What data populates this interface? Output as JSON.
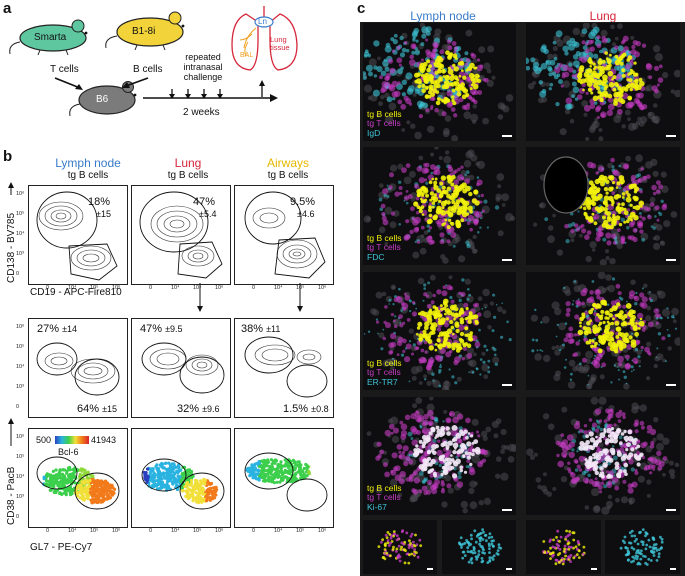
{
  "panels": {
    "a": "a",
    "b": "b",
    "c": "c"
  },
  "panel_a": {
    "mouse_smarta": "Smarta",
    "mouse_b18i": "B1-8i",
    "mouse_b6": "B6",
    "label_tcells": "T cells",
    "label_bcells": "B cells",
    "challenge": "repeated\nintranasal\nchallenge",
    "duration": "2 weeks",
    "lung_ln": "Ln",
    "lung_bal": "BAL",
    "lung_tissue": "Lung\ntissue"
  },
  "panel_b": {
    "columns": [
      {
        "title": "Lymph node",
        "sub": "tg B cells"
      },
      {
        "title": "Lung",
        "sub": "tg B cells"
      },
      {
        "title": "Airways",
        "sub": "tg B cells"
      }
    ],
    "row1": {
      "ylabel": "CD138 - BV785",
      "xlabel": "CD19 - APC-Fire810",
      "pcts": [
        {
          "val": "18%",
          "sd": "±15"
        },
        {
          "val": "47%",
          "sd": "±5.4"
        },
        {
          "val": "9.5%",
          "sd": "±4.6"
        }
      ]
    },
    "row2": {
      "upper": [
        {
          "val": "27%",
          "sd": "±14"
        },
        {
          "val": "47%",
          "sd": "±9.5"
        },
        {
          "val": "38%",
          "sd": "±11"
        }
      ],
      "lower": [
        {
          "val": "64%",
          "sd": "±15"
        },
        {
          "val": "32%",
          "sd": "±9.6"
        },
        {
          "val": "1.5%",
          "sd": "±0.8"
        }
      ]
    },
    "row3": {
      "ylabel": "CD38 - PacB",
      "xlabel": "GL7 - PE-Cy7",
      "scale_min": "500",
      "scale_max": "41943",
      "scale_label": "Bcl-6"
    },
    "ticks_y": [
      "10⁶",
      "10⁵",
      "10⁴",
      "10³",
      "0"
    ],
    "ticks_x": [
      "0",
      "10⁴",
      "10⁵",
      "10⁶"
    ]
  },
  "panel_c": {
    "col_left": "Lymph node",
    "col_right": "Lung",
    "rows": [
      {
        "l1": "tg B cells",
        "l2": "tg T cells",
        "l3": "IgD"
      },
      {
        "l1": "tg B cells",
        "l2": "tg T cells",
        "l3": "FDC"
      },
      {
        "l1": "tg B cells",
        "l2": "tg T cells",
        "l3": "ER-TR7"
      },
      {
        "l1": "tg B cells",
        "l2": "tg T cells",
        "l3": "Ki-67"
      }
    ]
  },
  "colors": {
    "lymph_node": "#3a7cc9",
    "lung": "#d6263b",
    "airways": "#e6b800",
    "tg_b": "#f2f20a",
    "tg_t": "#d640d0",
    "third_channel": "#3ec6d8"
  }
}
